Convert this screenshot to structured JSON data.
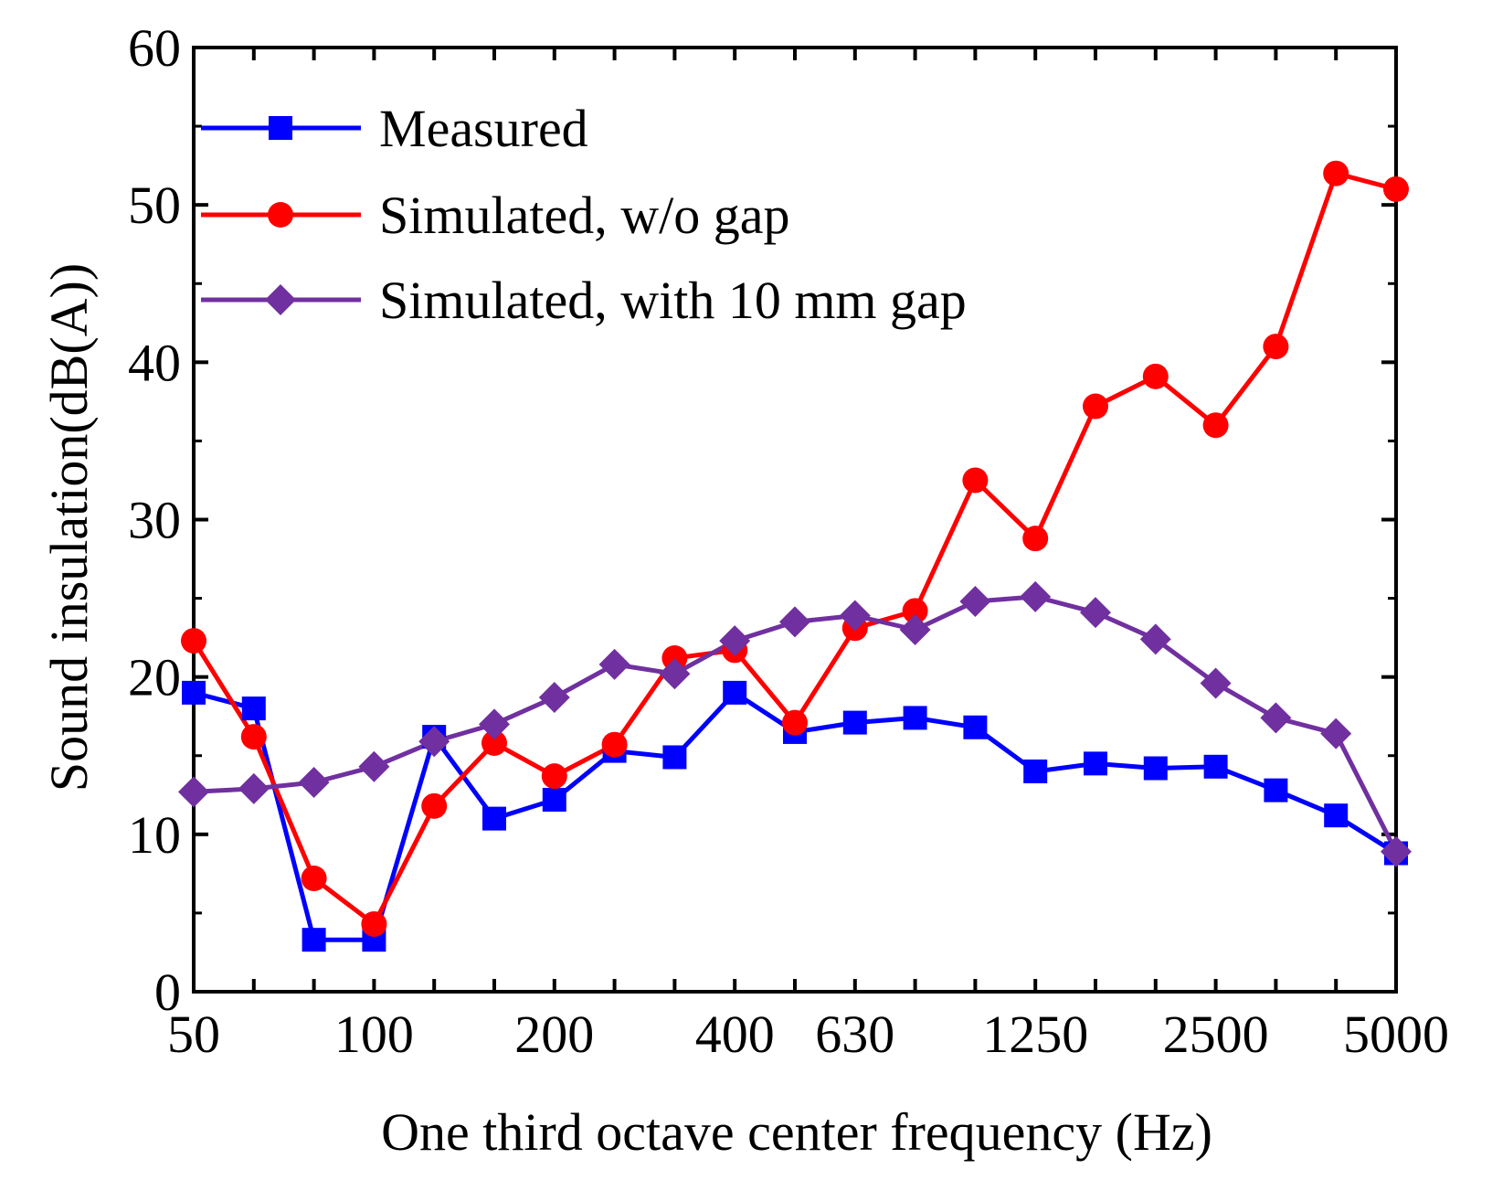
{
  "chart_data": {
    "type": "line",
    "title": "",
    "xlabel": "One third octave center frequency (Hz)",
    "ylabel": "Sound insulation(dB(A))",
    "ylim": [
      0,
      60
    ],
    "yticks": [
      "0",
      "10",
      "20",
      "30",
      "40",
      "50",
      "60"
    ],
    "xtick_labels": [
      "50",
      "100",
      "200",
      "400",
      "630",
      "1250",
      "2500",
      "5000"
    ],
    "x": [
      50,
      63,
      80,
      100,
      125,
      160,
      200,
      250,
      315,
      400,
      500,
      630,
      800,
      1000,
      1250,
      1600,
      2000,
      2500,
      3150,
      4000,
      5000
    ],
    "legend_position": "top-left",
    "grid": false,
    "series": [
      {
        "name": "Measured",
        "color": "#0000ff",
        "marker": "square",
        "values": [
          19.0,
          18.0,
          3.3,
          3.3,
          16.2,
          11.0,
          12.2,
          15.3,
          14.9,
          19.0,
          16.5,
          17.1,
          17.4,
          16.8,
          14.0,
          14.5,
          14.2,
          14.3,
          12.8,
          11.2,
          8.8
        ]
      },
      {
        "name": "Simulated, w/o gap",
        "color": "#ff0000",
        "marker": "circle",
        "values": [
          22.3,
          16.2,
          7.2,
          4.3,
          11.8,
          15.8,
          13.7,
          15.7,
          21.2,
          21.7,
          17.1,
          23.1,
          24.2,
          32.5,
          28.8,
          37.2,
          39.1,
          36.0,
          41.0,
          52.0,
          51.0
        ]
      },
      {
        "name": "Simulated, with 10 mm gap",
        "color": "#7030a0",
        "marker": "diamond",
        "values": [
          12.7,
          12.9,
          13.3,
          14.3,
          15.9,
          17.0,
          18.7,
          20.8,
          20.2,
          22.3,
          23.5,
          23.9,
          23.0,
          24.8,
          25.1,
          24.1,
          22.4,
          19.6,
          17.4,
          16.4,
          8.9
        ]
      }
    ]
  }
}
